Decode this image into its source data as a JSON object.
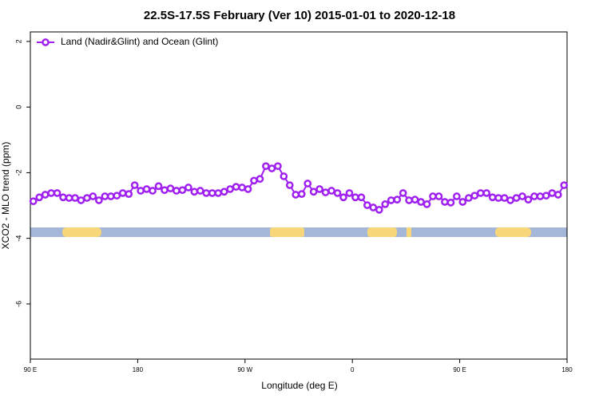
{
  "chart_data": {
    "type": "line",
    "title": "22.5S-17.5S February (Ver 10)   2015-01-01 to 2020-12-18",
    "x_label": "Longitude (deg E)",
    "y_label": "XCO2 - MLO trend (ppm)",
    "x": [
      92.5,
      97.5,
      102.5,
      107.5,
      112.5,
      117.5,
      122.5,
      127.5,
      132.5,
      137.5,
      142.5,
      147.5,
      152.5,
      157.5,
      162.5,
      167.5,
      172.5,
      177.5,
      182.5,
      187.5,
      192.5,
      197.5,
      202.5,
      207.5,
      212.5,
      217.5,
      222.5,
      227.5,
      232.5,
      237.5,
      242.5,
      247.5,
      252.5,
      257.5,
      262.5,
      267.5,
      272.5,
      277.5,
      282.5,
      287.5,
      292.5,
      297.5,
      302.5,
      307.5,
      312.5,
      317.5,
      322.5,
      327.5,
      332.5,
      337.5,
      342.5,
      347.5,
      352.5,
      357.5,
      362.5,
      367.5,
      372.5,
      377.5,
      382.5,
      387.5,
      392.5,
      397.5,
      402.5,
      407.5,
      412.5,
      417.5,
      422.5,
      427.5,
      432.5,
      437.5,
      442.5,
      447.5,
      452.5,
      457.5,
      462.5,
      467.5,
      472.5,
      477.5,
      482.5,
      487.5,
      492.5,
      497.5,
      502.5,
      507.5,
      512.5,
      517.5,
      522.5,
      527.5,
      532.5,
      537.5
    ],
    "series": [
      {
        "name": "Land (Nadir&Glint) and Ocean (Glint)",
        "color": "#a020f0",
        "values": [
          -2.87,
          -2.75,
          -2.67,
          -2.62,
          -2.62,
          -2.75,
          -2.77,
          -2.77,
          -2.84,
          -2.77,
          -2.72,
          -2.84,
          -2.72,
          -2.72,
          -2.7,
          -2.62,
          -2.65,
          -2.38,
          -2.55,
          -2.5,
          -2.55,
          -2.41,
          -2.53,
          -2.48,
          -2.55,
          -2.53,
          -2.45,
          -2.58,
          -2.55,
          -2.62,
          -2.62,
          -2.62,
          -2.58,
          -2.5,
          -2.43,
          -2.45,
          -2.5,
          -2.24,
          -2.19,
          -1.8,
          -1.87,
          -1.8,
          -2.11,
          -2.38,
          -2.67,
          -2.65,
          -2.33,
          -2.58,
          -2.5,
          -2.6,
          -2.55,
          -2.62,
          -2.75,
          -2.62,
          -2.75,
          -2.75,
          -2.99,
          -3.06,
          -3.13,
          -2.96,
          -2.84,
          -2.82,
          -2.62,
          -2.84,
          -2.82,
          -2.89,
          -2.96,
          -2.72,
          -2.72,
          -2.89,
          -2.91,
          -2.72,
          -2.89,
          -2.77,
          -2.7,
          -2.62,
          -2.62,
          -2.75,
          -2.77,
          -2.77,
          -2.84,
          -2.77,
          -2.72,
          -2.82,
          -2.72,
          -2.72,
          -2.7,
          -2.62,
          -2.67,
          -2.38
        ]
      }
    ],
    "xlim": [
      90,
      540
    ],
    "xticks": [
      {
        "value": 90,
        "label": "90 E"
      },
      {
        "value": 180,
        "label": "180"
      },
      {
        "value": 270,
        "label": "90 W"
      },
      {
        "value": 360,
        "label": "0"
      },
      {
        "value": 450,
        "label": "90 E"
      },
      {
        "value": 540,
        "label": "180"
      }
    ],
    "ylim": [
      -7.68,
      2.29
    ],
    "yticks": [
      2,
      0,
      -2,
      -4,
      -6
    ],
    "grid": false,
    "legend": "top-left"
  }
}
